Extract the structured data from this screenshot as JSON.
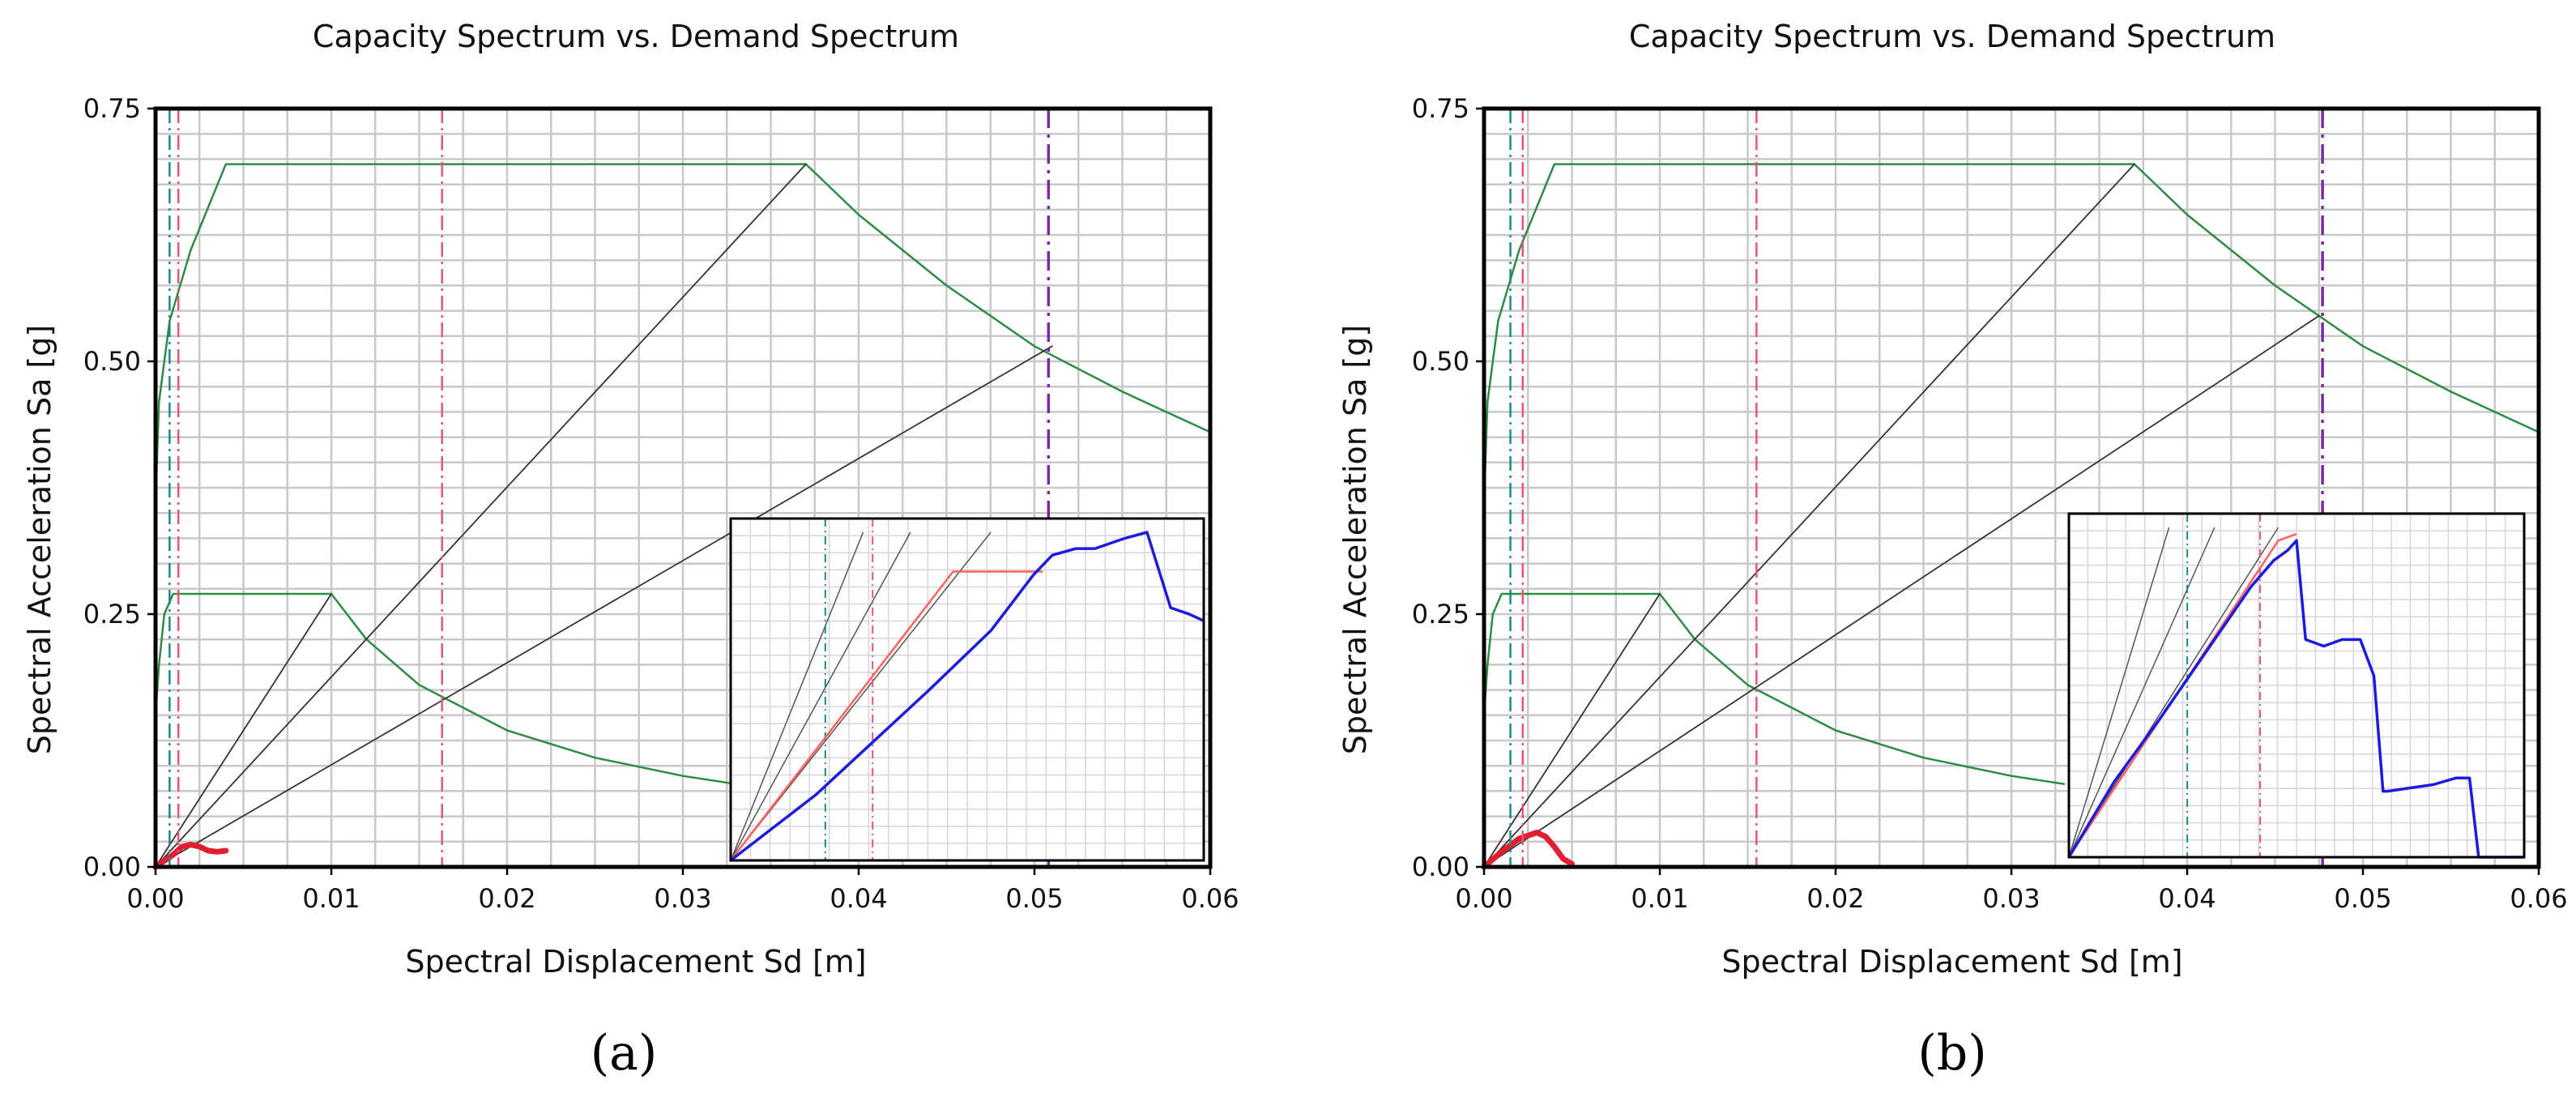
{
  "chart_data": [
    {
      "id": "a",
      "type": "line",
      "panel_label": "(a)",
      "title": "Capacity Spectrum vs. Demand Spectrum",
      "xlabel": "Spectral Displacement Sd [m]",
      "ylabel": "Spectral Acceleration Sa [g]",
      "xlim": [
        0,
        0.06
      ],
      "ylim": [
        0,
        0.75
      ],
      "xticks": [
        0,
        0.01,
        0.02,
        0.03,
        0.04,
        0.05,
        0.06
      ],
      "xtick_labels": [
        "0.00",
        "0.01",
        "0.02",
        "0.03",
        "0.04",
        "0.05",
        "0.06"
      ],
      "yticks": [
        0,
        0.25,
        0.5,
        0.75
      ],
      "ytick_labels": [
        "0.00",
        "0.25",
        "0.50",
        "0.75"
      ],
      "grid": true,
      "colors": {
        "demand": "#2e8b44",
        "radial": "#333333",
        "capacity": "#e02030",
        "curve": "#1c1cdc",
        "bilinear": "#ff6060",
        "grid": "#c8c8c8",
        "vline_teal": "#1a8a8a",
        "vline_pink": "#e8557a",
        "vline_purple": "#7a2aa0"
      },
      "series": [
        {
          "name": "demand-upper",
          "x": [
            0,
            0.0002,
            0.0008,
            0.002,
            0.004,
            0.037,
            0.04,
            0.045,
            0.05,
            0.055,
            0.06
          ],
          "y": [
            0.36,
            0.46,
            0.54,
            0.61,
            0.695,
            0.695,
            0.645,
            0.575,
            0.515,
            0.47,
            0.43
          ]
        },
        {
          "name": "demand-lower",
          "x": [
            0,
            0.0002,
            0.0005,
            0.001,
            0.01,
            0.012,
            0.015,
            0.02,
            0.025,
            0.03,
            0.033
          ],
          "y": [
            0.15,
            0.2,
            0.25,
            0.27,
            0.27,
            0.225,
            0.18,
            0.135,
            0.108,
            0.09,
            0.082
          ]
        },
        {
          "name": "radial-1",
          "x": [
            0,
            0.01
          ],
          "y": [
            0,
            0.27
          ]
        },
        {
          "name": "radial-2",
          "x": [
            0,
            0.037
          ],
          "y": [
            0,
            0.695
          ]
        },
        {
          "name": "radial-3",
          "x": [
            0,
            0.051
          ],
          "y": [
            0,
            0.515
          ]
        },
        {
          "name": "capacity",
          "x": [
            0,
            0.0005,
            0.001,
            0.0015,
            0.002,
            0.0025,
            0.003,
            0.0035,
            0.004
          ],
          "y": [
            0,
            0.006,
            0.012,
            0.02,
            0.022,
            0.02,
            0.016,
            0.015,
            0.016
          ]
        }
      ],
      "vlines": [
        {
          "x": 0.0008,
          "color": "vline_teal"
        },
        {
          "x": 0.0013,
          "color": "vline_pink"
        },
        {
          "x": 0.0163,
          "color": "vline_pink"
        },
        {
          "x": 0.0508,
          "color": "vline_purple"
        }
      ],
      "inset": {
        "curve": {
          "x": [
            0,
            0.18,
            0.3,
            0.42,
            0.55,
            0.64,
            0.68,
            0.73,
            0.77,
            0.83,
            0.88,
            0.93,
            0.97,
            1.0
          ],
          "y": [
            0,
            0.2,
            0.36,
            0.52,
            0.7,
            0.87,
            0.93,
            0.95,
            0.95,
            0.98,
            1.0,
            0.77,
            0.75,
            0.73
          ]
        },
        "curve_x_transform": "0.65",
        "bilinear": {
          "x": [
            0,
            0.47,
            0.66
          ],
          "y": [
            0,
            0.88,
            0.88
          ]
        },
        "radials": [
          {
            "x": [
              0,
              0.28
            ],
            "y": [
              0,
              1.0
            ]
          },
          {
            "x": [
              0,
              0.38
            ],
            "y": [
              0,
              1.0
            ]
          },
          {
            "x": [
              0,
              0.55
            ],
            "y": [
              0,
              1.0
            ]
          }
        ],
        "vlines": [
          {
            "x": 0.2,
            "color": "vline_teal"
          },
          {
            "x": 0.3,
            "color": "vline_pink"
          }
        ]
      }
    },
    {
      "id": "b",
      "type": "line",
      "panel_label": "(b)",
      "title": "Capacity Spectrum vs. Demand Spectrum",
      "xlabel": "Spectral Displacement Sd [m]",
      "ylabel": "Spectral Acceleration Sa [g]",
      "xlim": [
        0,
        0.06
      ],
      "ylim": [
        0,
        0.75
      ],
      "xticks": [
        0,
        0.01,
        0.02,
        0.03,
        0.04,
        0.05,
        0.06
      ],
      "xtick_labels": [
        "0.00",
        "0.01",
        "0.02",
        "0.03",
        "0.04",
        "0.05",
        "0.06"
      ],
      "yticks": [
        0,
        0.25,
        0.5,
        0.75
      ],
      "ytick_labels": [
        "0.00",
        "0.25",
        "0.50",
        "0.75"
      ],
      "grid": true,
      "colors": {
        "demand": "#2e8b44",
        "radial": "#333333",
        "capacity": "#e02030",
        "curve": "#1c1cdc",
        "bilinear": "#ff6060",
        "grid": "#c8c8c8",
        "vline_teal": "#1a8a8a",
        "vline_pink": "#e8557a",
        "vline_purple": "#7a2aa0"
      },
      "series": [
        {
          "name": "demand-upper",
          "x": [
            0,
            0.0002,
            0.0008,
            0.002,
            0.004,
            0.037,
            0.04,
            0.045,
            0.05,
            0.055,
            0.06
          ],
          "y": [
            0.36,
            0.46,
            0.54,
            0.61,
            0.695,
            0.695,
            0.645,
            0.575,
            0.515,
            0.47,
            0.43
          ]
        },
        {
          "name": "demand-lower",
          "x": [
            0,
            0.0002,
            0.0005,
            0.001,
            0.01,
            0.012,
            0.015,
            0.02,
            0.025,
            0.03,
            0.033
          ],
          "y": [
            0.15,
            0.2,
            0.25,
            0.27,
            0.27,
            0.225,
            0.18,
            0.135,
            0.108,
            0.09,
            0.082
          ]
        },
        {
          "name": "radial-1",
          "x": [
            0,
            0.01
          ],
          "y": [
            0,
            0.27
          ]
        },
        {
          "name": "radial-2",
          "x": [
            0,
            0.037
          ],
          "y": [
            0,
            0.695
          ]
        },
        {
          "name": "radial-3",
          "x": [
            0,
            0.0475
          ],
          "y": [
            0,
            0.545
          ]
        },
        {
          "name": "capacity",
          "x": [
            0,
            0.001,
            0.002,
            0.003,
            0.0035,
            0.004,
            0.0045,
            0.005
          ],
          "y": [
            0,
            0.015,
            0.028,
            0.034,
            0.03,
            0.02,
            0.008,
            0.003
          ]
        }
      ],
      "vlines": [
        {
          "x": 0.0015,
          "color": "vline_teal"
        },
        {
          "x": 0.0022,
          "color": "vline_pink"
        },
        {
          "x": 0.0155,
          "color": "vline_pink"
        },
        {
          "x": 0.0477,
          "color": "vline_purple"
        }
      ],
      "inset": {
        "curve": {
          "x": [
            0,
            0.1,
            0.2,
            0.3,
            0.4,
            0.45,
            0.48,
            0.5,
            0.52,
            0.56,
            0.6,
            0.64,
            0.67,
            0.69,
            0.7,
            0.75,
            0.8,
            0.85,
            0.88,
            0.9,
            0.95,
            1.0
          ],
          "y": [
            0,
            0.23,
            0.42,
            0.62,
            0.82,
            0.9,
            0.93,
            0.96,
            0.66,
            0.64,
            0.66,
            0.66,
            0.55,
            0.2,
            0.2,
            0.21,
            0.22,
            0.24,
            0.24,
            0.0,
            0.0,
            0.0
          ]
        },
        "curve_x_transform": "0.85",
        "bilinear": {
          "x": [
            0,
            0.46,
            0.5
          ],
          "y": [
            0,
            0.96,
            0.98
          ]
        },
        "radials": [
          {
            "x": [
              0,
              0.22
            ],
            "y": [
              0,
              1.0
            ]
          },
          {
            "x": [
              0,
              0.32
            ],
            "y": [
              0,
              1.0
            ]
          },
          {
            "x": [
              0,
              0.46
            ],
            "y": [
              0,
              1.0
            ]
          }
        ],
        "vlines": [
          {
            "x": 0.26,
            "color": "vline_teal"
          },
          {
            "x": 0.42,
            "color": "vline_pink"
          }
        ]
      }
    }
  ]
}
